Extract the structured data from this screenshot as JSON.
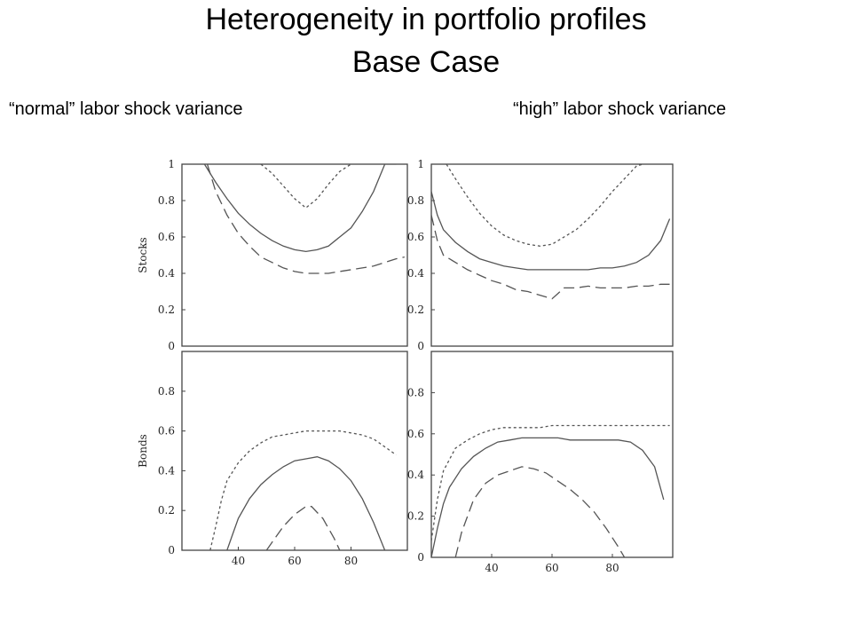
{
  "title": "Heterogeneity in portfolio profiles",
  "subtitle": "Base Case",
  "left_caption": "“normal” labor shock variance",
  "right_caption": "“high” labor shock variance",
  "colors": {
    "curve": "#555555",
    "frame": "#444444"
  },
  "chart_data": [
    {
      "type": "line",
      "panel": "top-left",
      "ylabel": "Stocks",
      "xlim": [
        20,
        100
      ],
      "ylim": [
        0,
        1
      ],
      "yticks": [
        "0",
        "0.2",
        "0.4",
        "0.6",
        "0.8",
        "1"
      ],
      "xticks": [],
      "series": [
        {
          "style": "dotted",
          "x": [
            48,
            52,
            56,
            60,
            64,
            68,
            72,
            76,
            80
          ],
          "y": [
            1.0,
            0.95,
            0.88,
            0.81,
            0.76,
            0.81,
            0.89,
            0.96,
            1.0
          ]
        },
        {
          "style": "solid",
          "x": [
            28,
            32,
            36,
            40,
            44,
            48,
            52,
            56,
            60,
            64,
            68,
            72,
            76,
            80,
            84,
            88,
            92,
            96
          ],
          "y": [
            1.0,
            0.9,
            0.81,
            0.73,
            0.67,
            0.62,
            0.58,
            0.55,
            0.53,
            0.52,
            0.53,
            0.55,
            0.6,
            0.65,
            0.74,
            0.85,
            1.0,
            1.0
          ]
        },
        {
          "style": "dashed",
          "x": [
            29,
            32,
            36,
            40,
            44,
            48,
            52,
            56,
            60,
            64,
            68,
            72,
            76,
            80,
            84,
            88,
            92,
            96,
            99
          ],
          "y": [
            1.0,
            0.85,
            0.72,
            0.62,
            0.55,
            0.49,
            0.46,
            0.43,
            0.41,
            0.4,
            0.4,
            0.4,
            0.41,
            0.42,
            0.43,
            0.44,
            0.46,
            0.48,
            0.49
          ]
        }
      ]
    },
    {
      "type": "line",
      "panel": "top-right",
      "xlim": [
        20,
        100
      ],
      "ylim": [
        0,
        1
      ],
      "yticks": [
        "0",
        "0.2",
        "0.4",
        "0.6",
        "0.8",
        "1"
      ],
      "xticks": [],
      "series": [
        {
          "style": "dotted",
          "x": [
            25,
            28,
            32,
            36,
            40,
            44,
            48,
            52,
            56,
            60,
            64,
            68,
            72,
            76,
            80,
            84,
            88,
            90
          ],
          "y": [
            1.0,
            0.92,
            0.82,
            0.73,
            0.66,
            0.61,
            0.58,
            0.56,
            0.55,
            0.56,
            0.6,
            0.64,
            0.7,
            0.77,
            0.85,
            0.92,
            0.99,
            1.0
          ]
        },
        {
          "style": "solid",
          "x": [
            20,
            22,
            24,
            28,
            32,
            36,
            40,
            44,
            48,
            52,
            56,
            60,
            64,
            68,
            72,
            76,
            80,
            84,
            88,
            92,
            96,
            99
          ],
          "y": [
            0.85,
            0.72,
            0.64,
            0.57,
            0.52,
            0.48,
            0.46,
            0.44,
            0.43,
            0.42,
            0.42,
            0.42,
            0.42,
            0.42,
            0.42,
            0.43,
            0.43,
            0.44,
            0.46,
            0.5,
            0.58,
            0.7
          ]
        },
        {
          "style": "dashed",
          "x": [
            20,
            22,
            24,
            28,
            32,
            36,
            40,
            44,
            48,
            52,
            56,
            60,
            62,
            64,
            68,
            72,
            76,
            80,
            84,
            88,
            92,
            96,
            99
          ],
          "y": [
            0.72,
            0.58,
            0.5,
            0.46,
            0.42,
            0.39,
            0.36,
            0.34,
            0.31,
            0.3,
            0.28,
            0.26,
            0.29,
            0.32,
            0.32,
            0.33,
            0.32,
            0.32,
            0.32,
            0.33,
            0.33,
            0.34,
            0.34
          ]
        }
      ]
    },
    {
      "type": "line",
      "panel": "bottom-left",
      "ylabel": "Bonds",
      "xlim": [
        20,
        100
      ],
      "ylim": [
        0,
        1
      ],
      "yticks": [
        "0",
        "0.2",
        "0.4",
        "0.6",
        "0.8"
      ],
      "xticks": [
        "40",
        "60",
        "80"
      ],
      "series": [
        {
          "style": "dotted",
          "x": [
            30,
            32,
            34,
            36,
            40,
            44,
            48,
            52,
            56,
            60,
            64,
            68,
            72,
            76,
            80,
            84,
            88,
            92,
            96
          ],
          "y": [
            0.0,
            0.12,
            0.25,
            0.35,
            0.44,
            0.5,
            0.54,
            0.57,
            0.58,
            0.59,
            0.6,
            0.6,
            0.6,
            0.6,
            0.59,
            0.58,
            0.56,
            0.52,
            0.48
          ]
        },
        {
          "style": "solid",
          "x": [
            36,
            38,
            40,
            44,
            48,
            52,
            56,
            60,
            64,
            68,
            70,
            72,
            76,
            80,
            84,
            88,
            92
          ],
          "y": [
            0.0,
            0.08,
            0.16,
            0.26,
            0.33,
            0.38,
            0.42,
            0.45,
            0.46,
            0.47,
            0.46,
            0.45,
            0.41,
            0.35,
            0.26,
            0.14,
            0.0
          ]
        },
        {
          "style": "dashed",
          "x": [
            50,
            52,
            56,
            60,
            64,
            66,
            70,
            74,
            76
          ],
          "y": [
            0.0,
            0.04,
            0.12,
            0.18,
            0.22,
            0.22,
            0.16,
            0.06,
            0.0
          ]
        }
      ]
    },
    {
      "type": "line",
      "panel": "bottom-right",
      "xlim": [
        20,
        100
      ],
      "ylim": [
        0,
        1
      ],
      "yticks": [
        "0",
        "0.2",
        "0.4",
        "0.6",
        "0.8"
      ],
      "xticks": [
        "40",
        "60",
        "80"
      ],
      "series": [
        {
          "style": "dotted",
          "x": [
            20,
            22,
            24,
            28,
            32,
            36,
            40,
            44,
            48,
            52,
            56,
            60,
            64,
            68,
            72,
            76,
            80,
            84,
            88,
            92,
            96,
            99
          ],
          "y": [
            0.08,
            0.28,
            0.42,
            0.53,
            0.57,
            0.6,
            0.62,
            0.63,
            0.63,
            0.63,
            0.63,
            0.64,
            0.64,
            0.64,
            0.64,
            0.64,
            0.64,
            0.64,
            0.64,
            0.64,
            0.64,
            0.64
          ]
        },
        {
          "style": "solid",
          "x": [
            20,
            22,
            24,
            26,
            30,
            34,
            38,
            42,
            46,
            50,
            54,
            58,
            62,
            66,
            70,
            74,
            78,
            82,
            86,
            90,
            94,
            97
          ],
          "y": [
            0.0,
            0.14,
            0.26,
            0.34,
            0.43,
            0.49,
            0.53,
            0.56,
            0.57,
            0.58,
            0.58,
            0.58,
            0.58,
            0.57,
            0.57,
            0.57,
            0.57,
            0.57,
            0.56,
            0.52,
            0.44,
            0.28
          ]
        },
        {
          "style": "dashed",
          "x": [
            28,
            30,
            34,
            38,
            42,
            46,
            50,
            54,
            58,
            62,
            66,
            70,
            74,
            78,
            82,
            84
          ],
          "y": [
            0.0,
            0.12,
            0.28,
            0.36,
            0.4,
            0.42,
            0.44,
            0.43,
            0.41,
            0.37,
            0.33,
            0.28,
            0.22,
            0.14,
            0.05,
            0.0
          ]
        }
      ]
    }
  ]
}
